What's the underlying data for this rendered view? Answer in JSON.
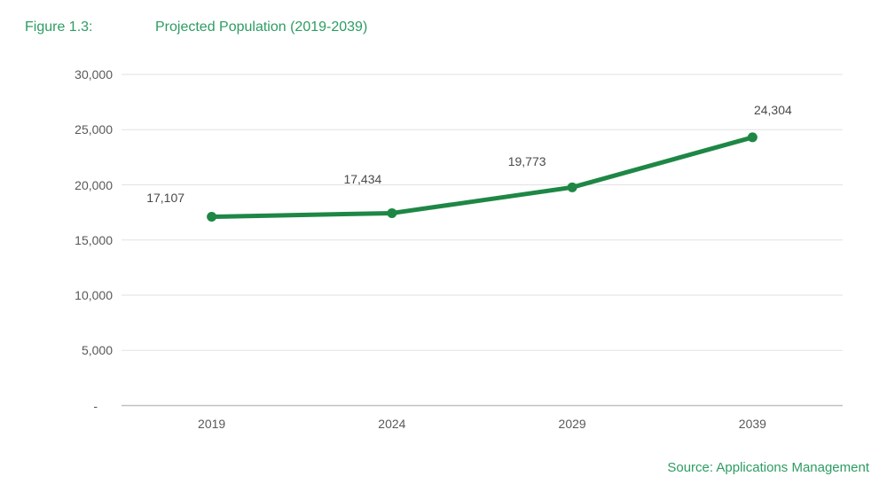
{
  "header": {
    "figure_label": "Figure 1.3:",
    "title": "Projected Population (2019-2039)"
  },
  "source": {
    "text": "Source: Applications Management"
  },
  "colors": {
    "title_green": "#2d9c62",
    "line_green": "#1e8745",
    "axis_text": "#595959",
    "data_label_text": "#4a4a4a",
    "gridline": "#e2e2e2",
    "axis_line": "#c0c0c0"
  },
  "chart_data": {
    "type": "line",
    "series_name": "Projected Population",
    "categories": [
      "2019",
      "2024",
      "2029",
      "2039"
    ],
    "values": [
      17107,
      17434,
      19773,
      24304
    ],
    "point_labels": [
      "17,107",
      "17,434",
      "19,773",
      "24,304"
    ],
    "title": "Projected Population (2019-2039)",
    "xlabel": "",
    "ylabel": "",
    "ylim": [
      0,
      30000
    ],
    "ytick_interval": 5000,
    "ytick_labels": [
      "-",
      "5,000",
      "10,000",
      "15,000",
      "20,000",
      "25,000",
      "30,000"
    ],
    "grid": true,
    "legend_position": "none"
  }
}
